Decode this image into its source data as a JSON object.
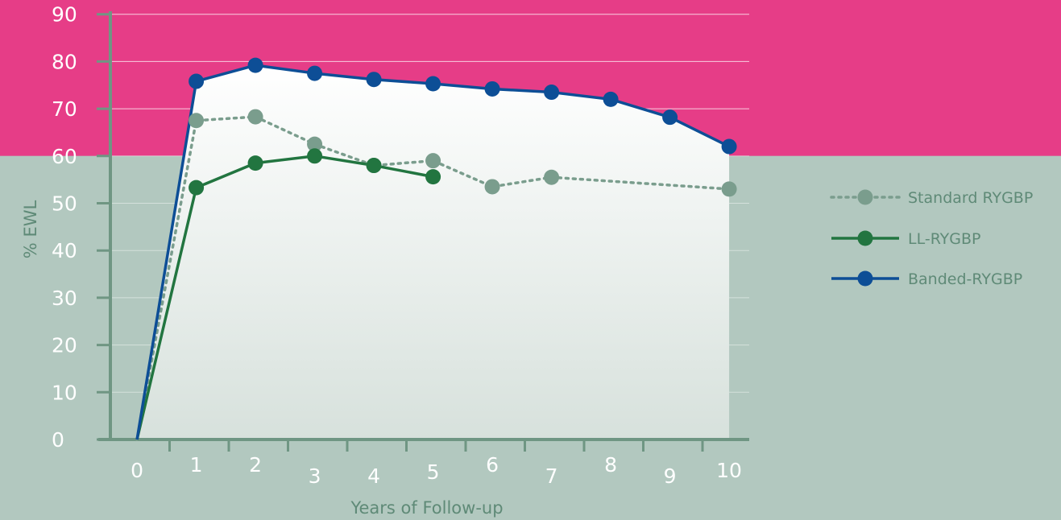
{
  "chart_data": {
    "type": "line",
    "title": "",
    "xlabel": "Years of Follow-up",
    "ylabel": "% EWL",
    "x_ticks": [
      "0",
      "1",
      "2",
      "3",
      "4",
      "5",
      "6",
      "7",
      "8",
      "9",
      "10"
    ],
    "y_ticks": [
      "0",
      "10",
      "20",
      "30",
      "40",
      "50",
      "60",
      "70",
      "80",
      "90"
    ],
    "xlim": [
      0,
      10.5
    ],
    "ylim": [
      0,
      90
    ],
    "grid": true,
    "legend_position": "right",
    "colors": {
      "upper_band": "#e63d87",
      "lower_band": "#b2c8bf",
      "axis": "#6f9683",
      "standard": "#7a9d8d",
      "ll": "#227540",
      "banded": "#0d4e96"
    },
    "series": [
      {
        "name": "Standard RYGBP",
        "style": "dotted",
        "x": [
          0.45,
          1.45,
          2.45,
          3.45,
          4.45,
          5.45,
          6.45,
          7.45,
          10.45
        ],
        "y": [
          0,
          67.5,
          68.3,
          62.5,
          58,
          59,
          53.5,
          55.5,
          53
        ]
      },
      {
        "name": "LL-RYGBP",
        "style": "solid",
        "x": [
          0.45,
          1.45,
          2.45,
          3.45,
          4.45,
          5.45
        ],
        "y": [
          0,
          53.3,
          58.5,
          60,
          58,
          55.6
        ]
      },
      {
        "name": "Banded-RYGBP",
        "style": "solid",
        "x": [
          0.45,
          1.45,
          2.45,
          3.45,
          4.45,
          5.45,
          6.45,
          7.45,
          8.45,
          9.45,
          10.45
        ],
        "y": [
          0,
          75.8,
          79.2,
          77.5,
          76.2,
          75.3,
          74.2,
          73.5,
          72,
          68.2,
          62
        ]
      }
    ]
  }
}
